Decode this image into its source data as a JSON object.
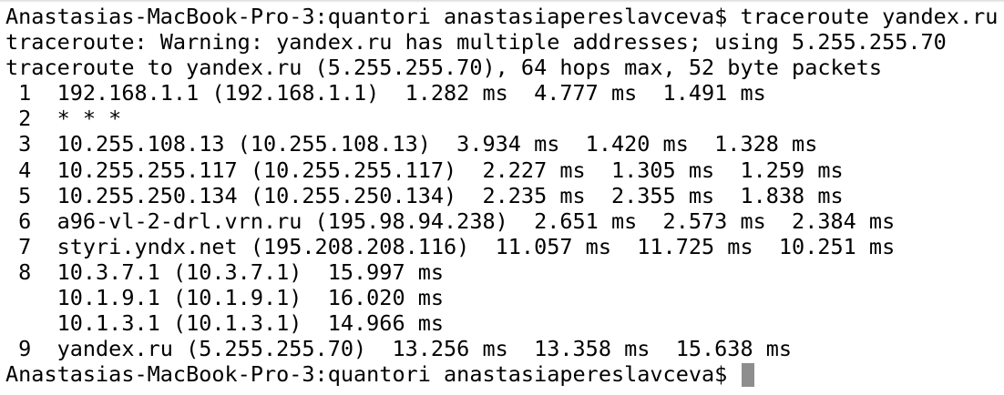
{
  "terminal": {
    "cursor_color": "#8e8e8e",
    "text_color": "#000000",
    "background": "#ffffff",
    "lines": [
      "Anastasias-MacBook-Pro-3:quantori anastasiapereslavceva$ traceroute yandex.ru",
      "traceroute: Warning: yandex.ru has multiple addresses; using 5.255.255.70",
      "traceroute to yandex.ru (5.255.255.70), 64 hops max, 52 byte packets",
      " 1  192.168.1.1 (192.168.1.1)  1.282 ms  4.777 ms  1.491 ms",
      " 2  * * *",
      " 3  10.255.108.13 (10.255.108.13)  3.934 ms  1.420 ms  1.328 ms",
      " 4  10.255.255.117 (10.255.255.117)  2.227 ms  1.305 ms  1.259 ms",
      " 5  10.255.250.134 (10.255.250.134)  2.235 ms  2.355 ms  1.838 ms",
      " 6  a96-vl-2-drl.vrn.ru (195.98.94.238)  2.651 ms  2.573 ms  2.384 ms",
      " 7  styri.yndx.net (195.208.208.116)  11.057 ms  11.725 ms  10.251 ms",
      " 8  10.3.7.1 (10.3.7.1)  15.997 ms",
      "    10.1.9.1 (10.1.9.1)  16.020 ms",
      "    10.1.3.1 (10.1.3.1)  14.966 ms",
      " 9  yandex.ru (5.255.255.70)  13.256 ms  13.358 ms  15.638 ms"
    ],
    "prompt": "Anastasias-MacBook-Pro-3:quantori anastasiapereslavceva$ "
  }
}
